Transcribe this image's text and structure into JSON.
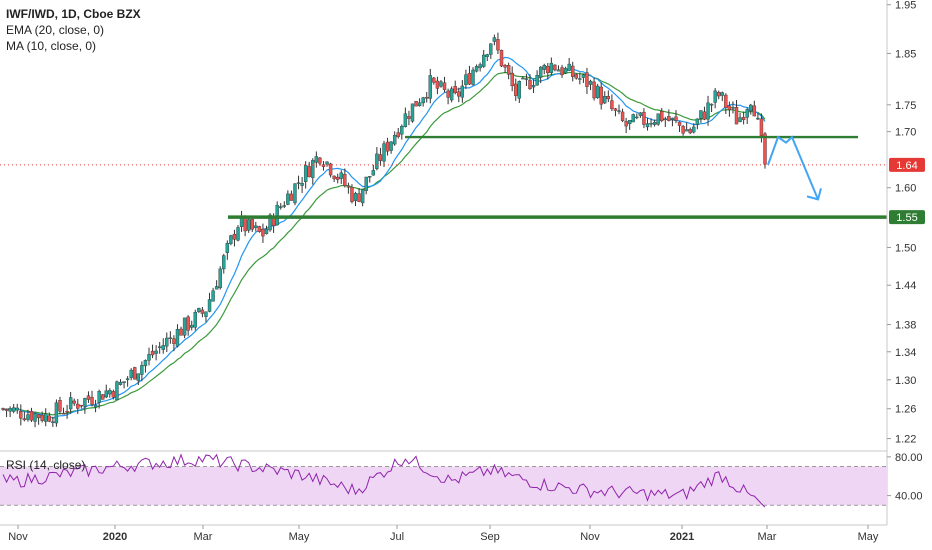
{
  "legend": {
    "title": "IWF/IWD, 1D, Cboe BZX",
    "ema": "EMA (20, close, 0)",
    "ma": "MA (10, close, 0)"
  },
  "rsi_label": "RSI (14, close)",
  "colors": {
    "up": "#26a69a",
    "down": "#ef5350",
    "candle_wick": "#333333",
    "ema": "#3c9a3c",
    "ma": "#2196f3",
    "support": "#2e7d32",
    "projection": "#42a5f5",
    "rsi_line": "#8e24aa",
    "rsi_band": "#efd6f5",
    "price_tag": "#e53935",
    "support_tag": "#2e7d32"
  },
  "chart_data": [
    {
      "type": "candlestick",
      "title": "IWF/IWD, 1D, Cboe BZX",
      "price_axis": {
        "scale": "log",
        "ticks": [
          "1.22",
          "1.26",
          "1.30",
          "1.34",
          "1.38",
          "1.44",
          "1.50",
          "1.55",
          "1.60",
          "1.64",
          "1.70",
          "1.75",
          "1.85",
          "1.95"
        ]
      },
      "time_axis": {
        "ticks": [
          "Nov",
          "2020",
          "Mar",
          "May",
          "Jul",
          "Sep",
          "Nov",
          "2021",
          "Mar",
          "May"
        ],
        "bold": [
          "2020",
          "2021"
        ]
      },
      "price_keypoints": [
        {
          "t": "Nov",
          "p": 1.26
        },
        {
          "t": "Dec",
          "p": 1.25
        },
        {
          "t": "2020",
          "p": 1.29
        },
        {
          "t": "Feb",
          "p": 1.36
        },
        {
          "t": "Mar",
          "p": 1.4
        },
        {
          "t": "Mar-late",
          "p": 1.54
        },
        {
          "t": "Apr",
          "p": 1.52
        },
        {
          "t": "Apr-late",
          "p": 1.58
        },
        {
          "t": "May",
          "p": 1.66
        },
        {
          "t": "Jun",
          "p": 1.58
        },
        {
          "t": "Jul",
          "p": 1.72
        },
        {
          "t": "Jul-mid",
          "p": 1.79
        },
        {
          "t": "Aug",
          "p": 1.76
        },
        {
          "t": "Sep",
          "p": 1.88
        },
        {
          "t": "Sep-mid",
          "p": 1.77
        },
        {
          "t": "Oct",
          "p": 1.83
        },
        {
          "t": "Nov",
          "p": 1.79
        },
        {
          "t": "Nov-mid",
          "p": 1.71
        },
        {
          "t": "Dec",
          "p": 1.73
        },
        {
          "t": "2021",
          "p": 1.7
        },
        {
          "t": "Jan-mid",
          "p": 1.77
        },
        {
          "t": "Feb",
          "p": 1.72
        },
        {
          "t": "Feb-mid",
          "p": 1.77
        },
        {
          "t": "Mar",
          "p": 1.64
        }
      ],
      "last_price": "1.64",
      "indicators": [
        "EMA (20, close, 0)",
        "MA (10, close, 0)"
      ],
      "annotations": {
        "support_line_upper": 1.69,
        "support_line_lower": 1.55,
        "support_label": "1.55",
        "projection_path": [
          1.64,
          1.69,
          1.68,
          1.69,
          1.58
        ]
      }
    },
    {
      "type": "line",
      "title": "RSI (14, close)",
      "y_ticks": [
        "80.00",
        "40.00"
      ],
      "band": [
        30,
        70
      ],
      "rsi_keypoints": [
        {
          "t": "Nov",
          "v": 55
        },
        {
          "t": "2020",
          "v": 70
        },
        {
          "t": "Mar",
          "v": 78
        },
        {
          "t": "May",
          "v": 62
        },
        {
          "t": "Jun",
          "v": 45
        },
        {
          "t": "Jul",
          "v": 80
        },
        {
          "t": "Aug",
          "v": 55
        },
        {
          "t": "Sep",
          "v": 66
        },
        {
          "t": "Oct",
          "v": 52
        },
        {
          "t": "Nov",
          "v": 45
        },
        {
          "t": "2021",
          "v": 40
        },
        {
          "t": "Feb",
          "v": 62
        },
        {
          "t": "Mar",
          "v": 28
        }
      ]
    }
  ]
}
